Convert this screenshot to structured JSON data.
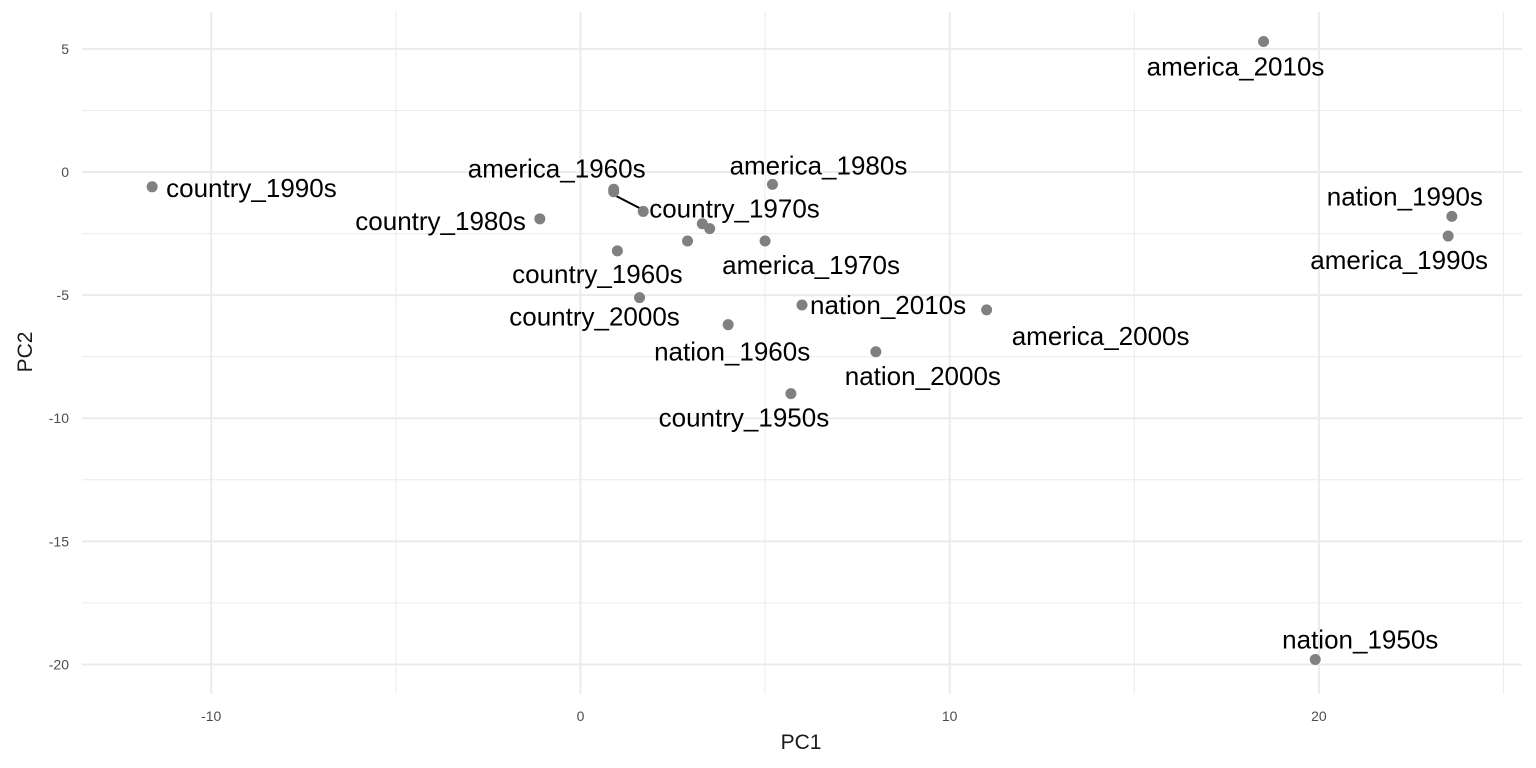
{
  "chart_data": {
    "type": "scatter",
    "title": "",
    "xlabel": "PC1",
    "ylabel": "PC2",
    "xlim": [
      -13.5,
      25.5
    ],
    "ylim": [
      -21.2,
      6.5
    ],
    "x_ticks": [
      -10,
      0,
      10,
      20
    ],
    "y_ticks": [
      5,
      0,
      -5,
      -10,
      -15,
      -20
    ],
    "x_tick_labels": [
      "-10",
      "0",
      "10",
      "20"
    ],
    "y_tick_labels": [
      "5",
      "0",
      "-5",
      "-10",
      "-15",
      "-20"
    ],
    "grid": true,
    "legend": "none",
    "points": [
      {
        "label": "america_2010s",
        "x": 18.5,
        "y": 5.3
      },
      {
        "label": "country_1990s",
        "x": -11.6,
        "y": -0.6
      },
      {
        "label": "america_1960s",
        "x": 0.9,
        "y": -0.7
      },
      {
        "label": "america_1980s",
        "x": 5.2,
        "y": -0.5
      },
      {
        "label": "country_1970s",
        "x": 1.7,
        "y": -1.6
      },
      {
        "label": "country_1980s",
        "x": -1.1,
        "y": -1.9
      },
      {
        "label": "nation_1990s",
        "x": 23.6,
        "y": -1.8
      },
      {
        "label": "america_1990s",
        "x": 23.5,
        "y": -2.6
      },
      {
        "label": "",
        "x": 0.9,
        "y": -0.8
      },
      {
        "label": "",
        "x": 3.3,
        "y": -2.1
      },
      {
        "label": "",
        "x": 3.5,
        "y": -2.3
      },
      {
        "label": "",
        "x": 2.9,
        "y": -2.8
      },
      {
        "label": "america_1970s",
        "x": 5.0,
        "y": -2.8
      },
      {
        "label": "country_1960s",
        "x": 1.0,
        "y": -3.2
      },
      {
        "label": "country_2000s",
        "x": 1.6,
        "y": -5.1
      },
      {
        "label": "nation_2010s",
        "x": 6.0,
        "y": -5.4
      },
      {
        "label": "america_2000s",
        "x": 11.0,
        "y": -5.6
      },
      {
        "label": "nation_1960s",
        "x": 4.0,
        "y": -6.2
      },
      {
        "label": "nation_2000s",
        "x": 8.0,
        "y": -7.3
      },
      {
        "label": "country_1950s",
        "x": 5.7,
        "y": -9.0
      },
      {
        "label": "nation_1950s",
        "x": 19.9,
        "y": -19.8
      }
    ]
  }
}
